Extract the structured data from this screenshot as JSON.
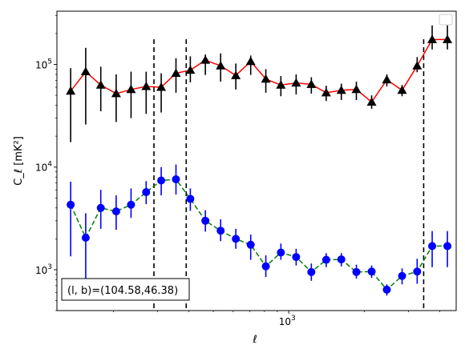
{
  "chart_data": {
    "type": "scatter",
    "title": "",
    "xlabel": "ℓ",
    "ylabel": "C_ℓ [mK²]",
    "xscale": "log",
    "yscale": "log",
    "xlim": [
      119,
      4650
    ],
    "ylim": [
      400,
      330000
    ],
    "x_tick_labels": [
      {
        "value": 1000,
        "label": "10",
        "exp": "3"
      }
    ],
    "y_tick_labels": [
      {
        "value": 1000,
        "label": "10",
        "exp": "3"
      },
      {
        "value": 10000,
        "label": "10",
        "exp": "4"
      },
      {
        "value": 100000,
        "label": "10",
        "exp": "5"
      }
    ],
    "grid": false,
    "legend": {
      "position": "top-right",
      "entries": []
    },
    "vlines": [
      290,
      390,
      3450
    ],
    "annotation": {
      "text_prefix": "(l, b)=",
      "text_value": "(104.58,46.38)",
      "position": "bottom-left"
    },
    "series": [
      {
        "marker": "triangle",
        "color": "#000000",
        "line_color": "#ff0000",
        "line_style": "solid",
        "x": [
          135,
          155,
          178,
          205,
          235,
          270,
          310,
          355,
          405,
          465,
          535,
          615,
          705,
          810,
          930,
          1070,
          1230,
          1410,
          1620,
          1860,
          2140,
          2460,
          2830,
          3250,
          3730,
          4290
        ],
        "y": [
          55000,
          85000,
          63000,
          52000,
          57000,
          61000,
          60000,
          82000,
          88000,
          110000,
          97000,
          78000,
          107000,
          72000,
          63000,
          66000,
          64000,
          53000,
          56000,
          57000,
          43000,
          71000,
          56000,
          97000,
          175000,
          175000
        ],
        "err_low": [
          17500,
          26000,
          35000,
          27500,
          30000,
          33000,
          34000,
          53000,
          67000,
          79000,
          68000,
          57000,
          79000,
          53000,
          49000,
          51000,
          52000,
          44000,
          45000,
          45000,
          37000,
          61000,
          49000,
          84000,
          140000,
          140000
        ],
        "err_high": [
          92000,
          145000,
          95000,
          80000,
          85000,
          85000,
          82000,
          115000,
          120000,
          125000,
          128000,
          102000,
          122000,
          90000,
          77000,
          80000,
          75000,
          62000,
          65000,
          68000,
          50000,
          80000,
          63000,
          118000,
          240000,
          240000
        ]
      },
      {
        "marker": "circle",
        "color": "#0000ff",
        "line_color": "#008000",
        "line_style": "dashed",
        "x": [
          135,
          155,
          178,
          205,
          235,
          270,
          310,
          355,
          405,
          465,
          535,
          615,
          705,
          810,
          930,
          1070,
          1230,
          1410,
          1620,
          1860,
          2140,
          2460,
          2830,
          3250,
          3730,
          4290
        ],
        "y": [
          4300,
          2050,
          4000,
          3700,
          4300,
          5700,
          7400,
          7600,
          4900,
          3000,
          2400,
          2000,
          1750,
          1080,
          1470,
          1330,
          950,
          1250,
          1260,
          950,
          960,
          640,
          870,
          960,
          1700,
          1700
        ],
        "err_low": [
          1350,
          540,
          2500,
          2450,
          3200,
          4350,
          5300,
          5400,
          3750,
          2350,
          1900,
          1600,
          1250,
          850,
          1250,
          1100,
          780,
          1060,
          1080,
          820,
          830,
          560,
          720,
          730,
          1060,
          1060
        ],
        "err_high": [
          7200,
          3550,
          6000,
          5300,
          6200,
          7300,
          10000,
          10600,
          6200,
          3800,
          3100,
          2500,
          2200,
          1380,
          1800,
          1600,
          1150,
          1450,
          1450,
          1120,
          1100,
          720,
          1030,
          1280,
          2380,
          2380
        ]
      }
    ]
  }
}
